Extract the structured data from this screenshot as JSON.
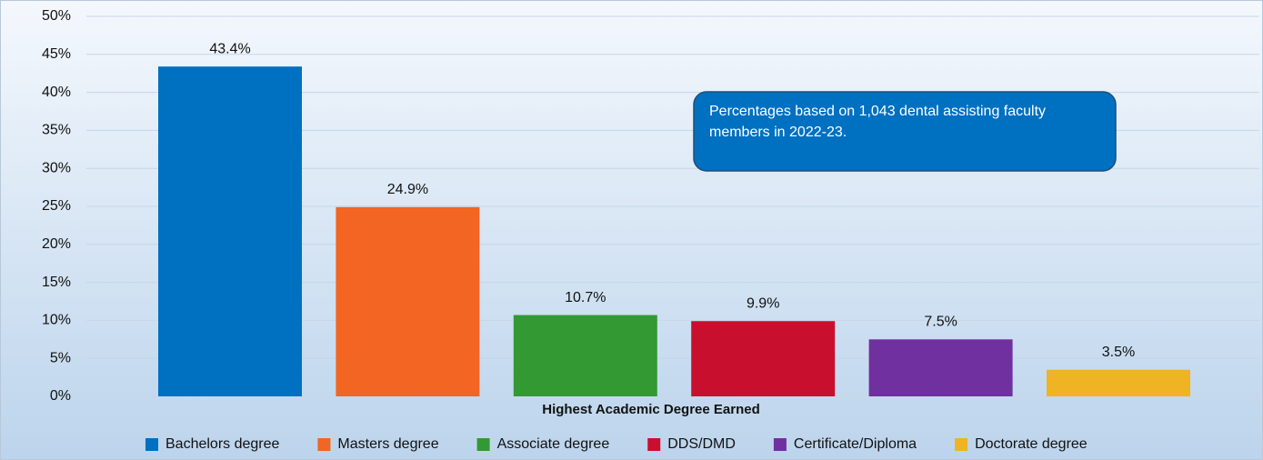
{
  "chart_data": {
    "type": "bar",
    "x_label": "Highest Academic Degree Earned",
    "annotation": "Percentages based on 1,043 dental assisting faculty members in 2022-23.",
    "categories": [
      "Bachelors degree",
      "Masters degree",
      "Associate degree",
      "DDS/DMD",
      "Certificate/Diploma",
      "Doctorate degree"
    ],
    "values": [
      43.4,
      24.9,
      10.7,
      9.9,
      7.5,
      3.5
    ],
    "value_labels": [
      "43.4%",
      "24.9%",
      "10.7%",
      "9.9%",
      "7.5%",
      "3.5%"
    ],
    "colors": [
      "#0070c0",
      "#f26522",
      "#339933",
      "#c8102e",
      "#7030a0",
      "#f0b323"
    ],
    "ylim": [
      0,
      50
    ],
    "yticks": [
      {
        "value": 0,
        "label": "0%"
      },
      {
        "value": 5,
        "label": "5%"
      },
      {
        "value": 10,
        "label": "10%"
      },
      {
        "value": 15,
        "label": "15%"
      },
      {
        "value": 20,
        "label": "20%"
      },
      {
        "value": 25,
        "label": "25%"
      },
      {
        "value": 30,
        "label": "30%"
      },
      {
        "value": 35,
        "label": "35%"
      },
      {
        "value": 40,
        "label": "40%"
      },
      {
        "value": 45,
        "label": "45%"
      },
      {
        "value": 50,
        "label": "50%"
      }
    ],
    "grid": true,
    "legend": "bottom"
  }
}
